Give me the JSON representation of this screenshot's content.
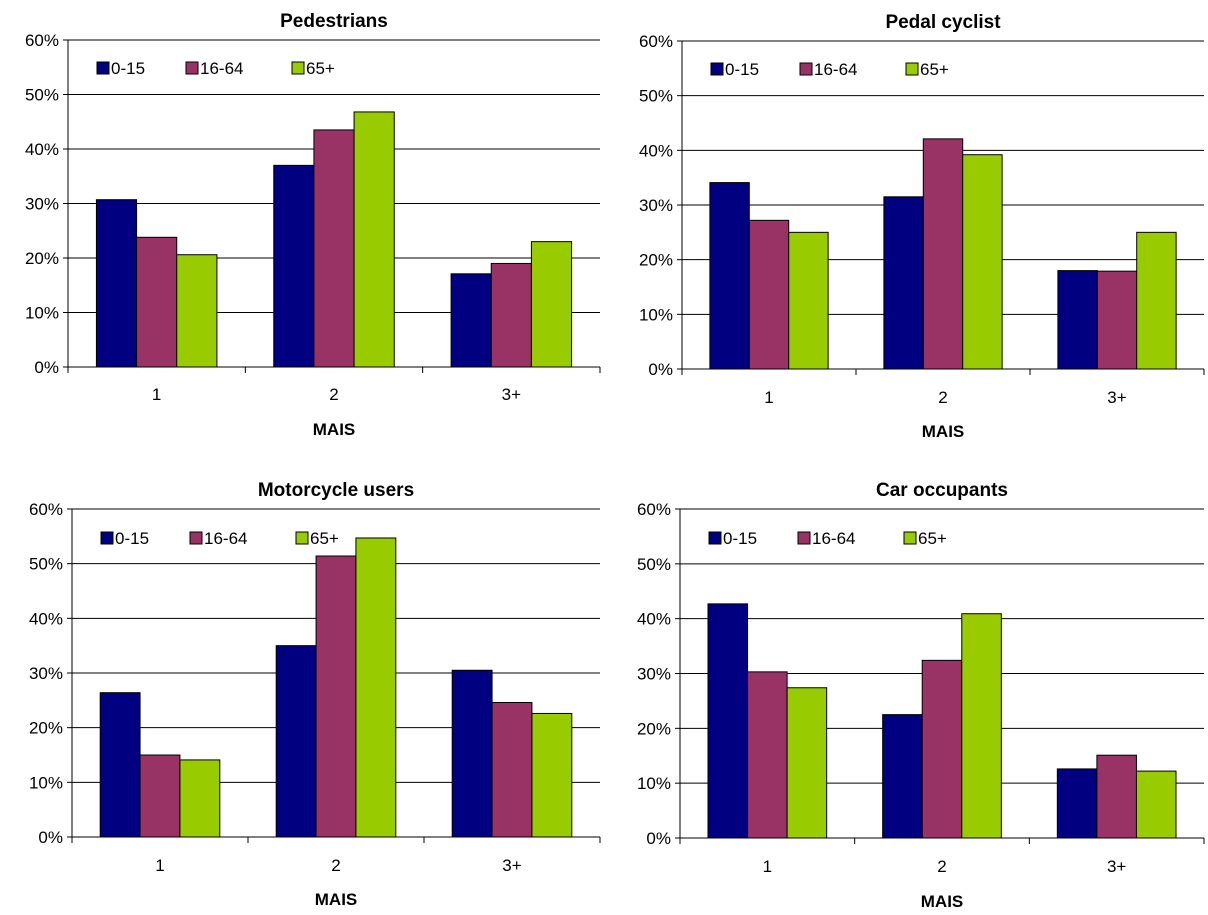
{
  "colors": {
    "0-15": "#000080",
    "16-64": "#993366",
    "65+": "#99CC00"
  },
  "chart_data": [
    {
      "type": "bar",
      "title": "Pedestrians",
      "xlabel": "MAIS",
      "categories": [
        "1",
        "2",
        "3+"
      ],
      "ylim": [
        0,
        60
      ],
      "yticks": [
        "0%",
        "10%",
        "20%",
        "30%",
        "40%",
        "50%",
        "60%"
      ],
      "grid": true,
      "legend": "top-left",
      "series": [
        {
          "name": "0-15",
          "values": [
            30.7,
            37,
            17.1
          ]
        },
        {
          "name": "16-64",
          "values": [
            23.8,
            43.5,
            19
          ]
        },
        {
          "name": "65+",
          "values": [
            20.6,
            46.8,
            23
          ]
        }
      ]
    },
    {
      "type": "bar",
      "title": "Pedal cyclist",
      "xlabel": "MAIS",
      "categories": [
        "1",
        "2",
        "3+"
      ],
      "ylim": [
        0,
        60
      ],
      "yticks": [
        "0%",
        "10%",
        "20%",
        "30%",
        "40%",
        "50%",
        "60%"
      ],
      "grid": true,
      "legend": "top-left",
      "series": [
        {
          "name": "0-15",
          "values": [
            34.1,
            31.5,
            18
          ]
        },
        {
          "name": "16-64",
          "values": [
            27.2,
            42.1,
            17.9
          ]
        },
        {
          "name": "65+",
          "values": [
            25,
            39.2,
            25
          ]
        }
      ]
    },
    {
      "type": "bar",
      "title": "Motorcycle users",
      "xlabel": "MAIS",
      "categories": [
        "1",
        "2",
        "3+"
      ],
      "ylim": [
        0,
        60
      ],
      "yticks": [
        "0%",
        "10%",
        "20%",
        "30%",
        "40%",
        "50%",
        "60%"
      ],
      "grid": true,
      "legend": "top-left",
      "series": [
        {
          "name": "0-15",
          "values": [
            26.4,
            35,
            30.5
          ]
        },
        {
          "name": "16-64",
          "values": [
            15,
            51.4,
            24.6
          ]
        },
        {
          "name": "65+",
          "values": [
            14.1,
            54.7,
            22.6
          ]
        }
      ]
    },
    {
      "type": "bar",
      "title": "Car occupants",
      "xlabel": "MAIS",
      "categories": [
        "1",
        "2",
        "3+"
      ],
      "ylim": [
        0,
        60
      ],
      "yticks": [
        "0%",
        "10%",
        "20%",
        "30%",
        "40%",
        "50%",
        "60%"
      ],
      "grid": true,
      "legend": "top-left",
      "series": [
        {
          "name": "0-15",
          "values": [
            42.7,
            22.5,
            12.6
          ]
        },
        {
          "name": "16-64",
          "values": [
            30.3,
            32.4,
            15.1
          ]
        },
        {
          "name": "65+",
          "values": [
            27.4,
            40.9,
            12.2
          ]
        }
      ]
    }
  ]
}
